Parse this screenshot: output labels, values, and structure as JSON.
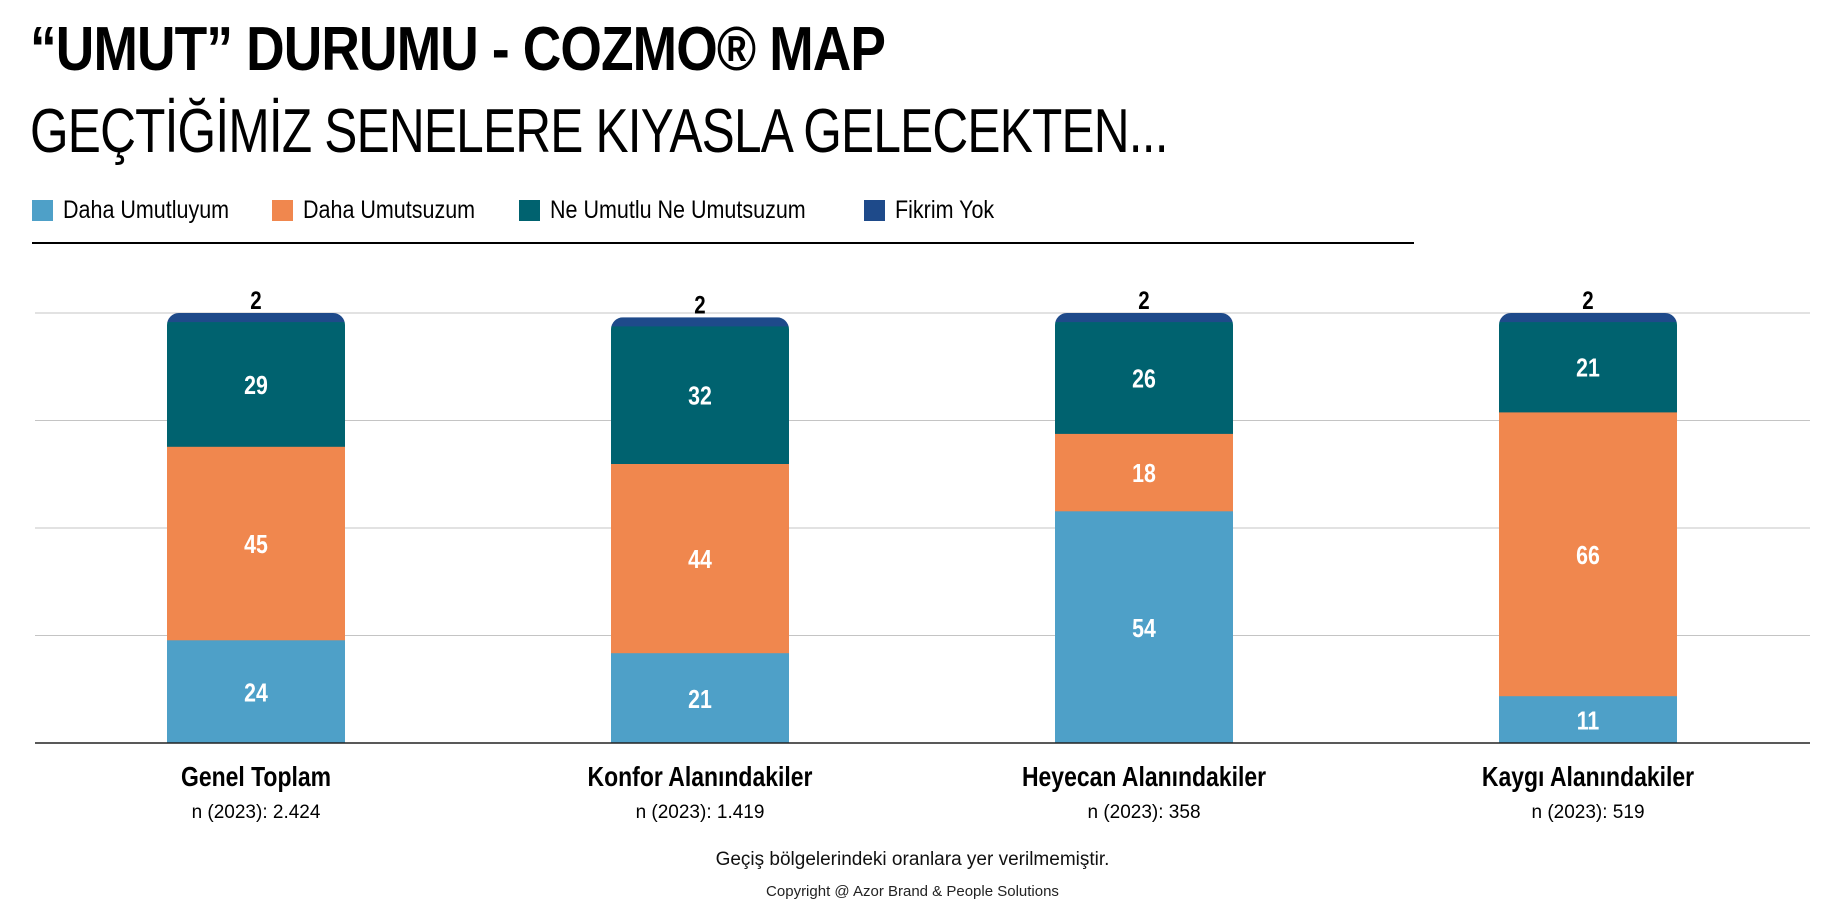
{
  "header": {
    "title": "“UMUT” DURUMU - COZMO® MAP",
    "subtitle": "GEÇTİĞİMİZ SENELERE KIYASLA GELECEKTEN..."
  },
  "footer": {
    "note": "Geçiş bölgelerindeki oranlara yer verilmemiştir.",
    "copyright": "Copyright @ Azor Brand & People Solutions"
  },
  "chart_data": {
    "type": "bar",
    "stacked": true,
    "title": "GEÇTİĞİMİZ SENELERE KIYASLA GELECEKTEN...",
    "xlabel": "",
    "ylabel": "",
    "ylim": [
      0,
      100
    ],
    "grid": true,
    "legend_position": "top-left",
    "categories": [
      "Genel Toplam",
      "Konfor Alanındakiler",
      "Heyecan Alanındakiler",
      "Kaygı Alanındakiler"
    ],
    "sample_sizes": [
      "n (2023): 2.424",
      "n (2023): 1.419",
      "n (2023): 358",
      "n (2023): 519"
    ],
    "series": [
      {
        "name": "Daha Umutluyum",
        "color": "#4ea0c8",
        "label_color": "#ffffff",
        "values": [
          24,
          21,
          54,
          11
        ]
      },
      {
        "name": "Daha Umutsuzum",
        "color": "#f0874e",
        "label_color": "#ffffff",
        "values": [
          45,
          44,
          18,
          66
        ]
      },
      {
        "name": "Ne Umutlu Ne Umutsuzum",
        "color": "#00626f",
        "label_color": "#ffffff",
        "values": [
          29,
          32,
          26,
          21
        ]
      },
      {
        "name": "Fikrim Yok",
        "color": "#1e4a8a",
        "label_color": "#000000",
        "values": [
          2,
          2,
          2,
          2
        ]
      }
    ]
  }
}
